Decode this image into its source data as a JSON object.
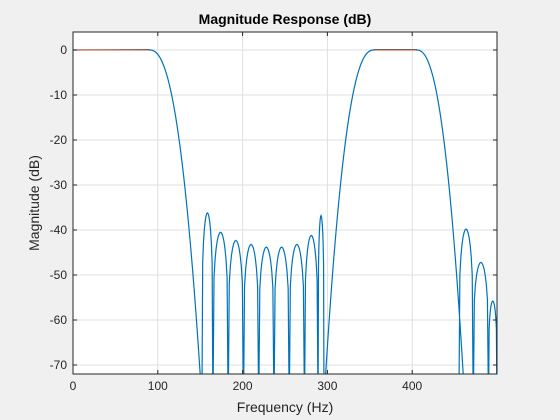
{
  "chart_data": {
    "type": "line",
    "title": "Magnitude Response (dB)",
    "xlabel": "Frequency (Hz)",
    "ylabel": "Magnitude (dB)",
    "xlim": [
      0,
      500
    ],
    "ylim": [
      -72,
      4
    ],
    "xticks": [
      0,
      100,
      200,
      300,
      400
    ],
    "yticks": [
      0,
      -10,
      -20,
      -30,
      -40,
      -50,
      -60,
      -70
    ],
    "grid": true,
    "line_color": "#0072bd",
    "passband_marker_color": "#d95319",
    "passbands_hz": [
      [
        0,
        90
      ],
      [
        355,
        405
      ]
    ],
    "rolloff_edges_hz": [
      [
        90,
        152
      ],
      [
        296,
        355
      ],
      [
        405,
        462
      ]
    ],
    "stopband_ripple_peaks": [
      {
        "x": 156,
        "y": -36.2
      },
      {
        "x": 174,
        "y": -40.5
      },
      {
        "x": 192,
        "y": -42.3
      },
      {
        "x": 210,
        "y": -43.2
      },
      {
        "x": 228,
        "y": -43.8
      },
      {
        "x": 246,
        "y": -43.8
      },
      {
        "x": 264,
        "y": -43.2
      },
      {
        "x": 282,
        "y": -41.2
      },
      {
        "x": 297,
        "y": -36.8
      },
      {
        "x": 466,
        "y": -39.8
      },
      {
        "x": 482,
        "y": -47.2
      },
      {
        "x": 495,
        "y": -55.8
      }
    ],
    "nulls_hz": [
      152,
      165,
      183,
      201,
      219,
      237,
      255,
      273,
      289,
      455,
      472,
      490
    ]
  }
}
